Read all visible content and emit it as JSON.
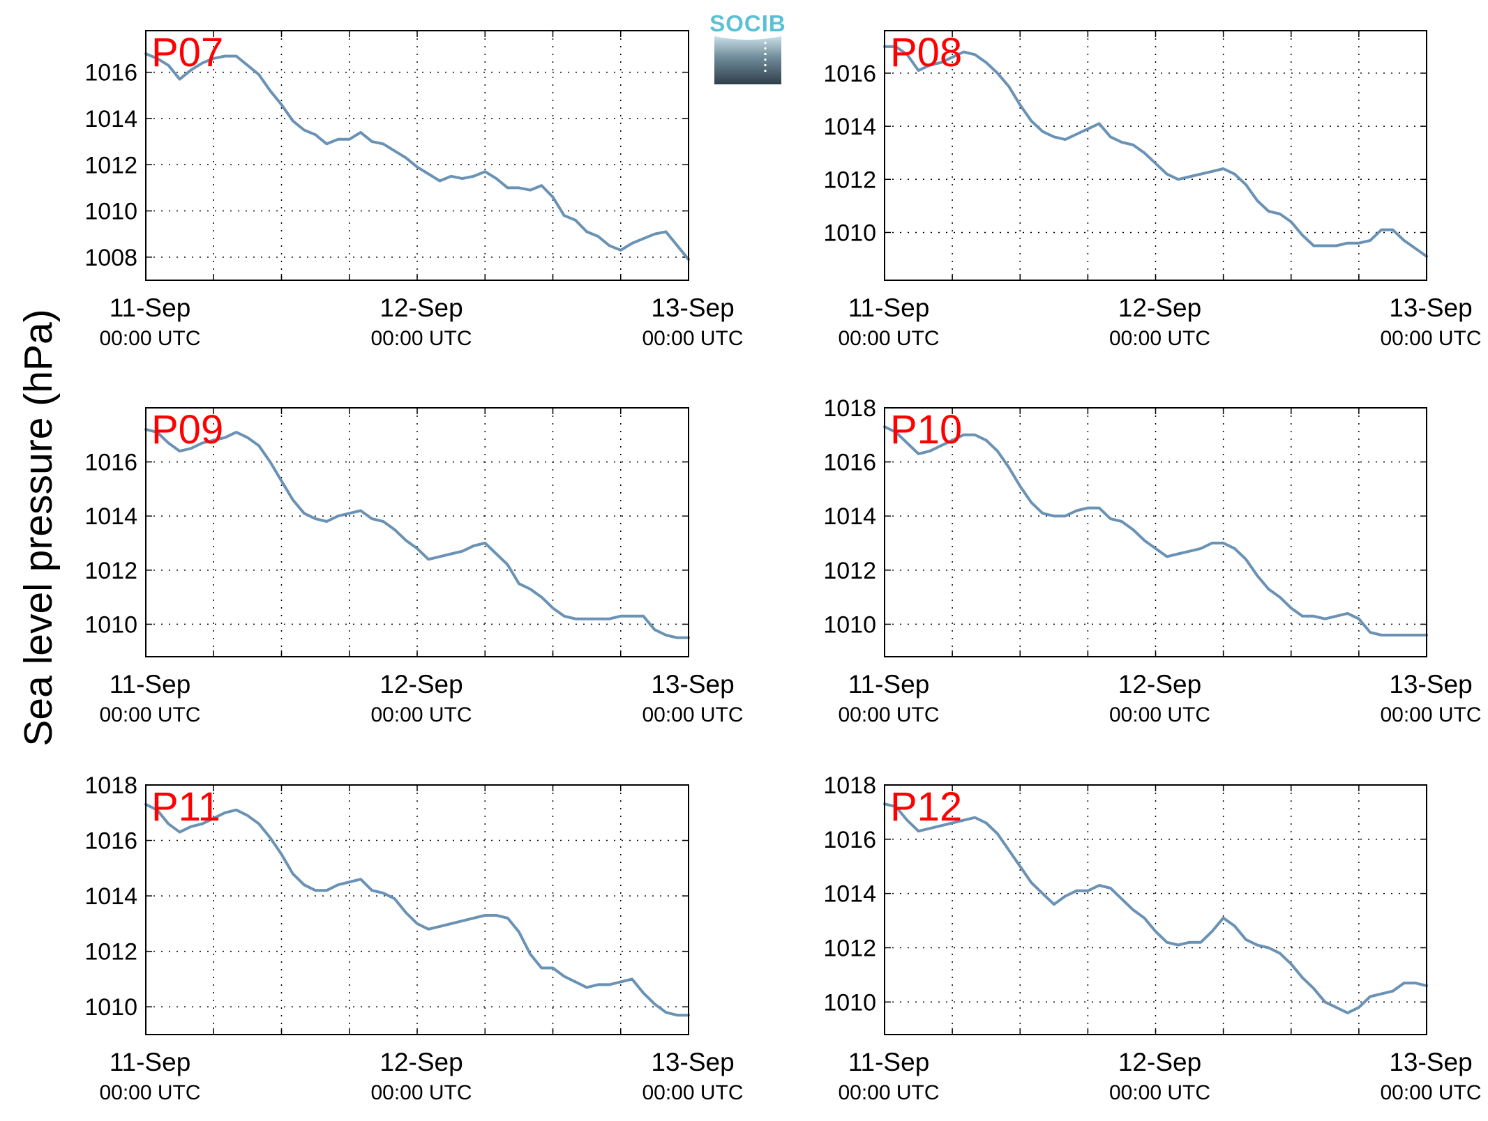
{
  "chart_data": {
    "type": "line",
    "ylabel": "Sea level pressure (hPa)",
    "logo": "SOCIB",
    "line_color": "#6a92b5",
    "label_color": "#ff0000",
    "grid": "dotted",
    "x_ticks": [
      {
        "x": 0,
        "date": "11-Sep",
        "time": "00:00 UTC"
      },
      {
        "x": 24,
        "date": "12-Sep",
        "time": "00:00 UTC"
      },
      {
        "x": 48,
        "date": "13-Sep",
        "time": "00:00 UTC"
      }
    ],
    "xlim": [
      0,
      48
    ],
    "x_units": "hours since 11-Sep 00:00 UTC",
    "panels": [
      {
        "name": "P07",
        "ylim": [
          1007,
          1017.8
        ],
        "yticks": [
          1008,
          1010,
          1012,
          1014,
          1016
        ],
        "points": [
          [
            0,
            1016.8
          ],
          [
            1,
            1016.6
          ],
          [
            2,
            1016.3
          ],
          [
            3,
            1015.7
          ],
          [
            4,
            1016.1
          ],
          [
            5,
            1016.4
          ],
          [
            6,
            1016.6
          ],
          [
            7,
            1016.7
          ],
          [
            8,
            1016.7
          ],
          [
            9,
            1016.3
          ],
          [
            10,
            1015.9
          ],
          [
            11,
            1015.2
          ],
          [
            12,
            1014.6
          ],
          [
            13,
            1013.9
          ],
          [
            14,
            1013.5
          ],
          [
            15,
            1013.3
          ],
          [
            16,
            1012.9
          ],
          [
            17,
            1013.1
          ],
          [
            18,
            1013.1
          ],
          [
            19,
            1013.4
          ],
          [
            20,
            1013.0
          ],
          [
            21,
            1012.9
          ],
          [
            22,
            1012.6
          ],
          [
            23,
            1012.3
          ],
          [
            24,
            1011.9
          ],
          [
            25,
            1011.6
          ],
          [
            26,
            1011.3
          ],
          [
            27,
            1011.5
          ],
          [
            28,
            1011.4
          ],
          [
            29,
            1011.5
          ],
          [
            30,
            1011.7
          ],
          [
            31,
            1011.4
          ],
          [
            32,
            1011.0
          ],
          [
            33,
            1011.0
          ],
          [
            34,
            1010.9
          ],
          [
            35,
            1011.1
          ],
          [
            36,
            1010.6
          ],
          [
            37,
            1009.8
          ],
          [
            38,
            1009.6
          ],
          [
            39,
            1009.1
          ],
          [
            40,
            1008.9
          ],
          [
            41,
            1008.5
          ],
          [
            42,
            1008.3
          ],
          [
            43,
            1008.6
          ],
          [
            44,
            1008.8
          ],
          [
            45,
            1009.0
          ],
          [
            46,
            1009.1
          ],
          [
            47,
            1008.5
          ],
          [
            48,
            1007.9
          ]
        ]
      },
      {
        "name": "P08",
        "ylim": [
          1008.2,
          1017.6
        ],
        "yticks": [
          1010,
          1012,
          1014,
          1016
        ],
        "points": [
          [
            0,
            1017.0
          ],
          [
            1,
            1017.0
          ],
          [
            2,
            1016.7
          ],
          [
            3,
            1016.1
          ],
          [
            4,
            1016.3
          ],
          [
            5,
            1016.4
          ],
          [
            6,
            1016.6
          ],
          [
            7,
            1016.8
          ],
          [
            8,
            1016.7
          ],
          [
            9,
            1016.4
          ],
          [
            10,
            1016.0
          ],
          [
            11,
            1015.5
          ],
          [
            12,
            1014.8
          ],
          [
            13,
            1014.2
          ],
          [
            14,
            1013.8
          ],
          [
            15,
            1013.6
          ],
          [
            16,
            1013.5
          ],
          [
            17,
            1013.7
          ],
          [
            18,
            1013.9
          ],
          [
            19,
            1014.1
          ],
          [
            20,
            1013.6
          ],
          [
            21,
            1013.4
          ],
          [
            22,
            1013.3
          ],
          [
            23,
            1013.0
          ],
          [
            24,
            1012.6
          ],
          [
            25,
            1012.2
          ],
          [
            26,
            1012.0
          ],
          [
            27,
            1012.1
          ],
          [
            28,
            1012.2
          ],
          [
            29,
            1012.3
          ],
          [
            30,
            1012.4
          ],
          [
            31,
            1012.2
          ],
          [
            32,
            1011.8
          ],
          [
            33,
            1011.2
          ],
          [
            34,
            1010.8
          ],
          [
            35,
            1010.7
          ],
          [
            36,
            1010.4
          ],
          [
            37,
            1009.9
          ],
          [
            38,
            1009.5
          ],
          [
            39,
            1009.5
          ],
          [
            40,
            1009.5
          ],
          [
            41,
            1009.6
          ],
          [
            42,
            1009.6
          ],
          [
            43,
            1009.7
          ],
          [
            44,
            1010.1
          ],
          [
            45,
            1010.1
          ],
          [
            46,
            1009.7
          ],
          [
            47,
            1009.4
          ],
          [
            48,
            1009.1
          ]
        ]
      },
      {
        "name": "P09",
        "ylim": [
          1008.8,
          1018.0
        ],
        "yticks": [
          1010,
          1012,
          1014,
          1016
        ],
        "points": [
          [
            0,
            1017.2
          ],
          [
            1,
            1017.1
          ],
          [
            2,
            1016.7
          ],
          [
            3,
            1016.4
          ],
          [
            4,
            1016.5
          ],
          [
            5,
            1016.7
          ],
          [
            6,
            1016.8
          ],
          [
            7,
            1016.9
          ],
          [
            8,
            1017.1
          ],
          [
            9,
            1016.9
          ],
          [
            10,
            1016.6
          ],
          [
            11,
            1016.0
          ],
          [
            12,
            1015.3
          ],
          [
            13,
            1014.6
          ],
          [
            14,
            1014.1
          ],
          [
            15,
            1013.9
          ],
          [
            16,
            1013.8
          ],
          [
            17,
            1014.0
          ],
          [
            18,
            1014.1
          ],
          [
            19,
            1014.2
          ],
          [
            20,
            1013.9
          ],
          [
            21,
            1013.8
          ],
          [
            22,
            1013.5
          ],
          [
            23,
            1013.1
          ],
          [
            24,
            1012.8
          ],
          [
            25,
            1012.4
          ],
          [
            26,
            1012.5
          ],
          [
            27,
            1012.6
          ],
          [
            28,
            1012.7
          ],
          [
            29,
            1012.9
          ],
          [
            30,
            1013.0
          ],
          [
            31,
            1012.6
          ],
          [
            32,
            1012.2
          ],
          [
            33,
            1011.5
          ],
          [
            34,
            1011.3
          ],
          [
            35,
            1011.0
          ],
          [
            36,
            1010.6
          ],
          [
            37,
            1010.3
          ],
          [
            38,
            1010.2
          ],
          [
            39,
            1010.2
          ],
          [
            40,
            1010.2
          ],
          [
            41,
            1010.2
          ],
          [
            42,
            1010.3
          ],
          [
            43,
            1010.3
          ],
          [
            44,
            1010.3
          ],
          [
            45,
            1009.8
          ],
          [
            46,
            1009.6
          ],
          [
            47,
            1009.5
          ],
          [
            48,
            1009.5
          ]
        ]
      },
      {
        "name": "P10",
        "ylim": [
          1008.8,
          1018.0
        ],
        "yticks": [
          1010,
          1012,
          1014,
          1016,
          1018
        ],
        "points": [
          [
            0,
            1017.3
          ],
          [
            1,
            1017.1
          ],
          [
            2,
            1016.7
          ],
          [
            3,
            1016.3
          ],
          [
            4,
            1016.4
          ],
          [
            5,
            1016.6
          ],
          [
            6,
            1016.8
          ],
          [
            7,
            1017.0
          ],
          [
            8,
            1017.0
          ],
          [
            9,
            1016.8
          ],
          [
            10,
            1016.4
          ],
          [
            11,
            1015.8
          ],
          [
            12,
            1015.1
          ],
          [
            13,
            1014.5
          ],
          [
            14,
            1014.1
          ],
          [
            15,
            1014.0
          ],
          [
            16,
            1014.0
          ],
          [
            17,
            1014.2
          ],
          [
            18,
            1014.3
          ],
          [
            19,
            1014.3
          ],
          [
            20,
            1013.9
          ],
          [
            21,
            1013.8
          ],
          [
            22,
            1013.5
          ],
          [
            23,
            1013.1
          ],
          [
            24,
            1012.8
          ],
          [
            25,
            1012.5
          ],
          [
            26,
            1012.6
          ],
          [
            27,
            1012.7
          ],
          [
            28,
            1012.8
          ],
          [
            29,
            1013.0
          ],
          [
            30,
            1013.0
          ],
          [
            31,
            1012.8
          ],
          [
            32,
            1012.4
          ],
          [
            33,
            1011.8
          ],
          [
            34,
            1011.3
          ],
          [
            35,
            1011.0
          ],
          [
            36,
            1010.6
          ],
          [
            37,
            1010.3
          ],
          [
            38,
            1010.3
          ],
          [
            39,
            1010.2
          ],
          [
            40,
            1010.3
          ],
          [
            41,
            1010.4
          ],
          [
            42,
            1010.2
          ],
          [
            43,
            1009.7
          ],
          [
            44,
            1009.6
          ],
          [
            45,
            1009.6
          ],
          [
            46,
            1009.6
          ],
          [
            47,
            1009.6
          ],
          [
            48,
            1009.6
          ]
        ]
      },
      {
        "name": "P11",
        "ylim": [
          1009.0,
          1018.0
        ],
        "yticks": [
          1010,
          1012,
          1014,
          1016,
          1018
        ],
        "points": [
          [
            0,
            1017.3
          ],
          [
            1,
            1017.1
          ],
          [
            2,
            1016.6
          ],
          [
            3,
            1016.3
          ],
          [
            4,
            1016.5
          ],
          [
            5,
            1016.6
          ],
          [
            6,
            1016.8
          ],
          [
            7,
            1017.0
          ],
          [
            8,
            1017.1
          ],
          [
            9,
            1016.9
          ],
          [
            10,
            1016.6
          ],
          [
            11,
            1016.1
          ],
          [
            12,
            1015.5
          ],
          [
            13,
            1014.8
          ],
          [
            14,
            1014.4
          ],
          [
            15,
            1014.2
          ],
          [
            16,
            1014.2
          ],
          [
            17,
            1014.4
          ],
          [
            18,
            1014.5
          ],
          [
            19,
            1014.6
          ],
          [
            20,
            1014.2
          ],
          [
            21,
            1014.1
          ],
          [
            22,
            1013.9
          ],
          [
            23,
            1013.4
          ],
          [
            24,
            1013.0
          ],
          [
            25,
            1012.8
          ],
          [
            26,
            1012.9
          ],
          [
            27,
            1013.0
          ],
          [
            28,
            1013.1
          ],
          [
            29,
            1013.2
          ],
          [
            30,
            1013.3
          ],
          [
            31,
            1013.3
          ],
          [
            32,
            1013.2
          ],
          [
            33,
            1012.7
          ],
          [
            34,
            1011.9
          ],
          [
            35,
            1011.4
          ],
          [
            36,
            1011.4
          ],
          [
            37,
            1011.1
          ],
          [
            38,
            1010.9
          ],
          [
            39,
            1010.7
          ],
          [
            40,
            1010.8
          ],
          [
            41,
            1010.8
          ],
          [
            42,
            1010.9
          ],
          [
            43,
            1011.0
          ],
          [
            44,
            1010.5
          ],
          [
            45,
            1010.1
          ],
          [
            46,
            1009.8
          ],
          [
            47,
            1009.7
          ],
          [
            48,
            1009.7
          ]
        ]
      },
      {
        "name": "P12",
        "ylim": [
          1008.8,
          1018.0
        ],
        "yticks": [
          1010,
          1012,
          1014,
          1016,
          1018
        ],
        "points": [
          [
            0,
            1017.3
          ],
          [
            1,
            1017.2
          ],
          [
            2,
            1016.7
          ],
          [
            3,
            1016.3
          ],
          [
            4,
            1016.4
          ],
          [
            5,
            1016.5
          ],
          [
            6,
            1016.6
          ],
          [
            7,
            1016.7
          ],
          [
            8,
            1016.8
          ],
          [
            9,
            1016.6
          ],
          [
            10,
            1016.2
          ],
          [
            11,
            1015.6
          ],
          [
            12,
            1015.0
          ],
          [
            13,
            1014.4
          ],
          [
            14,
            1014.0
          ],
          [
            15,
            1013.6
          ],
          [
            16,
            1013.9
          ],
          [
            17,
            1014.1
          ],
          [
            18,
            1014.1
          ],
          [
            19,
            1014.3
          ],
          [
            20,
            1014.2
          ],
          [
            21,
            1013.8
          ],
          [
            22,
            1013.4
          ],
          [
            23,
            1013.1
          ],
          [
            24,
            1012.6
          ],
          [
            25,
            1012.2
          ],
          [
            26,
            1012.1
          ],
          [
            27,
            1012.2
          ],
          [
            28,
            1012.2
          ],
          [
            29,
            1012.6
          ],
          [
            30,
            1013.1
          ],
          [
            31,
            1012.8
          ],
          [
            32,
            1012.3
          ],
          [
            33,
            1012.1
          ],
          [
            34,
            1012.0
          ],
          [
            35,
            1011.8
          ],
          [
            36,
            1011.4
          ],
          [
            37,
            1010.9
          ],
          [
            38,
            1010.5
          ],
          [
            39,
            1010.0
          ],
          [
            40,
            1009.8
          ],
          [
            41,
            1009.6
          ],
          [
            42,
            1009.8
          ],
          [
            43,
            1010.2
          ],
          [
            44,
            1010.3
          ],
          [
            45,
            1010.4
          ],
          [
            46,
            1010.7
          ],
          [
            47,
            1010.7
          ],
          [
            48,
            1010.6
          ]
        ]
      }
    ]
  }
}
